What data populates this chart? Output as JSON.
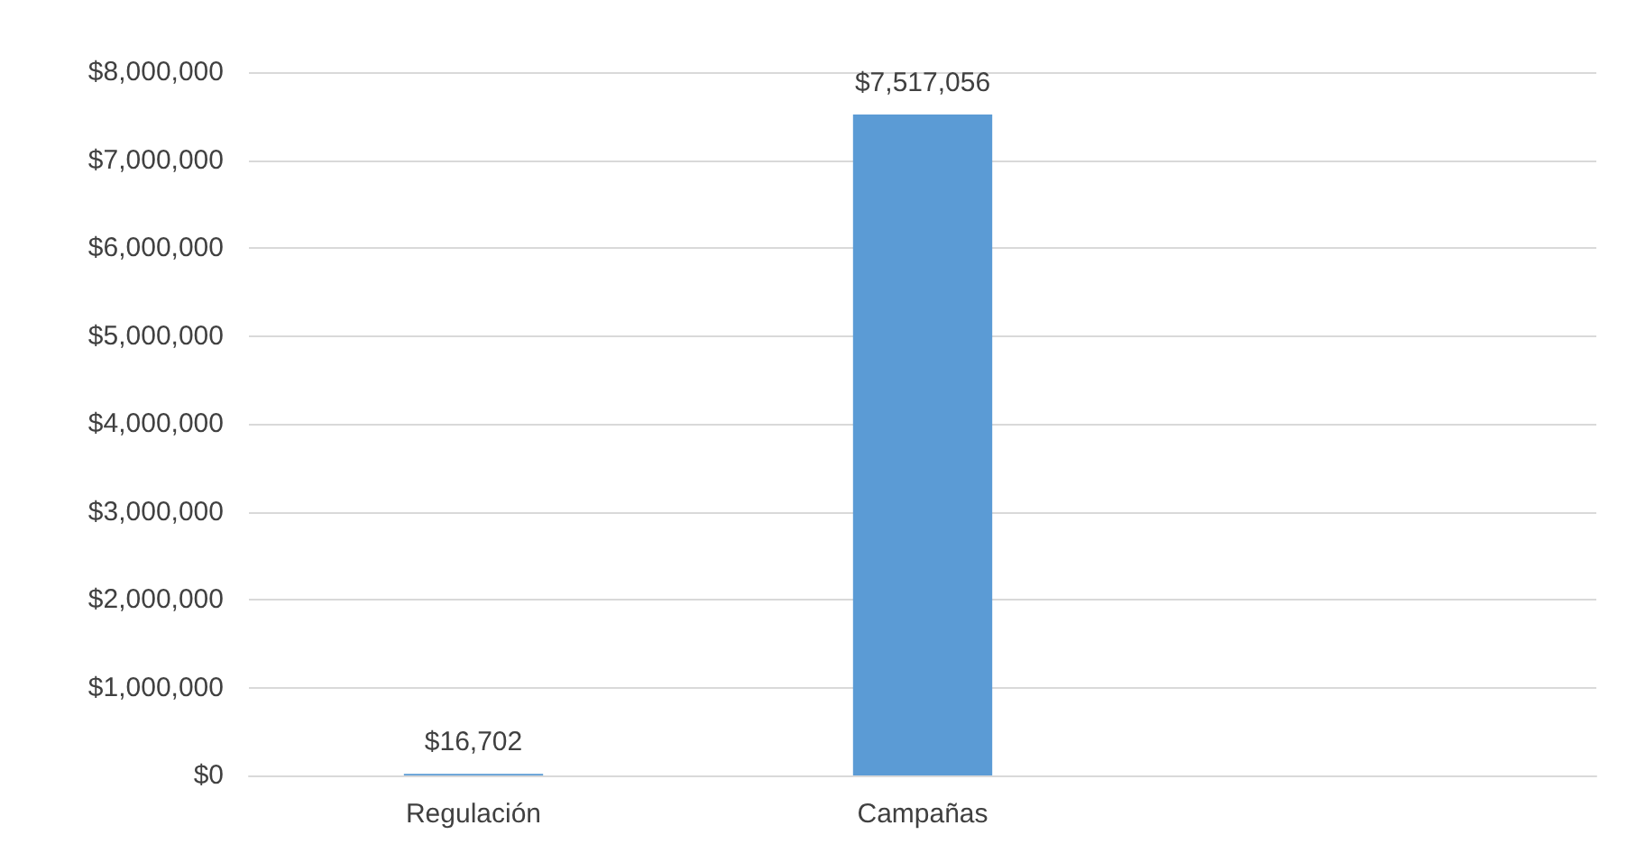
{
  "chart_data": {
    "type": "bar",
    "categories": [
      "Regulación",
      "Campañas",
      null
    ],
    "values": [
      16702,
      7517056,
      null
    ],
    "color": "#5b9bd5",
    "ylim": [
      0,
      8000000
    ],
    "yticks": [
      {
        "value": 0,
        "label": "$0"
      },
      {
        "value": 1000000,
        "label": "$1,000,000"
      },
      {
        "value": 2000000,
        "label": "$2,000,000"
      },
      {
        "value": 3000000,
        "label": "$3,000,000"
      },
      {
        "value": 4000000,
        "label": "$4,000,000"
      },
      {
        "value": 5000000,
        "label": "$5,000,000"
      },
      {
        "value": 6000000,
        "label": "$6,000,000"
      },
      {
        "value": 7000000,
        "label": "$7,000,000"
      },
      {
        "value": 8000000,
        "label": "$8,000,000"
      }
    ],
    "grid": "y",
    "value_labels": [
      "$16,702",
      "$7,517,056",
      null
    ]
  }
}
